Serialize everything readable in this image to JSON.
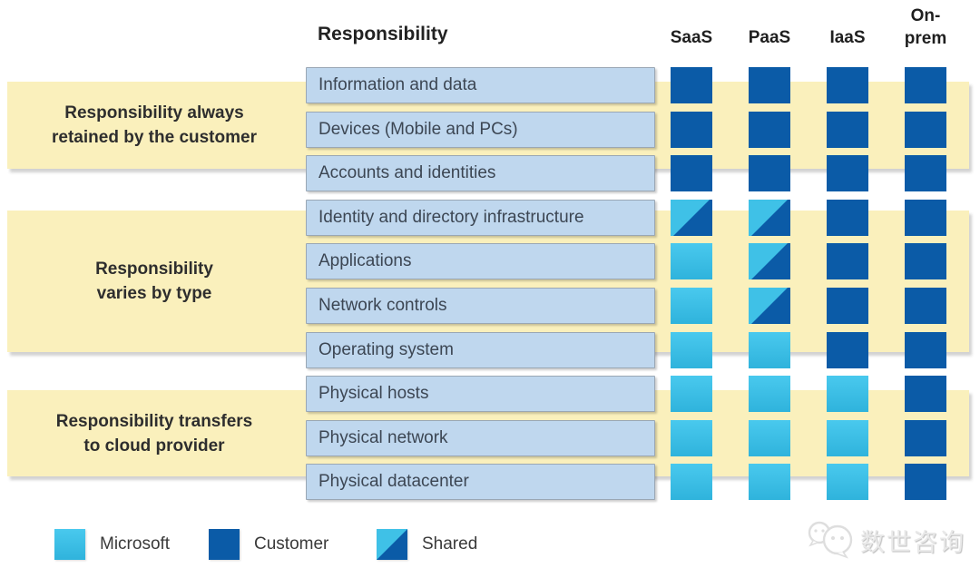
{
  "title": "Responsibility",
  "columns": [
    {
      "label": "SaaS",
      "lines": [
        "SaaS"
      ]
    },
    {
      "label": "PaaS",
      "lines": [
        "PaaS"
      ]
    },
    {
      "label": "IaaS",
      "lines": [
        "IaaS"
      ]
    },
    {
      "label": "On-prem",
      "lines": [
        "On-",
        "prem"
      ]
    }
  ],
  "groups": [
    {
      "label_lines": [
        "Responsibility always",
        "retained by the customer"
      ]
    },
    {
      "label_lines": [
        "Responsibility",
        "varies by type"
      ]
    },
    {
      "label_lines": [
        "Responsibility transfers",
        "to cloud provider"
      ]
    }
  ],
  "rows": [
    {
      "label": "Information and data",
      "cells": [
        "customer",
        "customer",
        "customer",
        "customer"
      ]
    },
    {
      "label": "Devices (Mobile and PCs)",
      "cells": [
        "customer",
        "customer",
        "customer",
        "customer"
      ]
    },
    {
      "label": "Accounts and identities",
      "cells": [
        "customer",
        "customer",
        "customer",
        "customer"
      ]
    },
    {
      "label": "Identity and directory infrastructure",
      "cells": [
        "shared",
        "shared",
        "customer",
        "customer"
      ]
    },
    {
      "label": "Applications",
      "cells": [
        "microsoft",
        "shared",
        "customer",
        "customer"
      ]
    },
    {
      "label": "Network controls",
      "cells": [
        "microsoft",
        "shared",
        "customer",
        "customer"
      ]
    },
    {
      "label": "Operating system",
      "cells": [
        "microsoft",
        "microsoft",
        "customer",
        "customer"
      ]
    },
    {
      "label": "Physical hosts",
      "cells": [
        "microsoft",
        "microsoft",
        "microsoft",
        "customer"
      ]
    },
    {
      "label": "Physical network",
      "cells": [
        "microsoft",
        "microsoft",
        "microsoft",
        "customer"
      ]
    },
    {
      "label": "Physical datacenter",
      "cells": [
        "microsoft",
        "microsoft",
        "microsoft",
        "customer"
      ]
    }
  ],
  "legend": [
    {
      "label": "Microsoft",
      "type": "microsoft"
    },
    {
      "label": "Customer",
      "type": "customer"
    },
    {
      "label": "Shared",
      "type": "shared"
    }
  ],
  "colors": {
    "microsoft_light_blue": "#3FC1E7",
    "customer_dark_blue": "#0B5BA7",
    "group_band_yellow": "#FAF0BC",
    "row_box_blue": "#BFD7EE"
  },
  "watermark": {
    "text": "数世咨询"
  }
}
